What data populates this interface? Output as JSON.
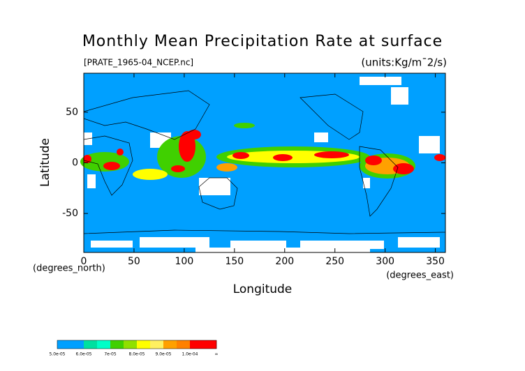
{
  "chart_data": {
    "type": "filled-contour",
    "title": "Monthly Mean Precipitation Rate at surface",
    "subtitle": "[PRATE_1965-04_NCEP.nc]",
    "units": "(units:Kg/m¯2/s)",
    "xlabel": "Longitude",
    "ylabel": "Latitude",
    "x_unit_label": "(degrees_east)",
    "y_unit_label": "(degrees_north)",
    "xlim": [
      0,
      360
    ],
    "ylim": [
      -88.5,
      88.5
    ],
    "xticks": [
      0,
      50,
      100,
      150,
      200,
      250,
      300,
      350
    ],
    "yticks": [
      -50,
      0,
      50
    ],
    "colorbar": {
      "labels": [
        "5.0e-05",
        "6.0e-05",
        "7e-05",
        "8.0e-05",
        "9.0e-05",
        "1.0e-04",
        "∞"
      ],
      "colors": [
        "#00a0ff",
        "#00a0ff",
        "#00e0a0",
        "#00ffc8",
        "#40d000",
        "#90e000",
        "#ffff00",
        "#fff060",
        "#ffa000",
        "#ff8000",
        "#ff0000",
        "#ff0000"
      ]
    }
  }
}
